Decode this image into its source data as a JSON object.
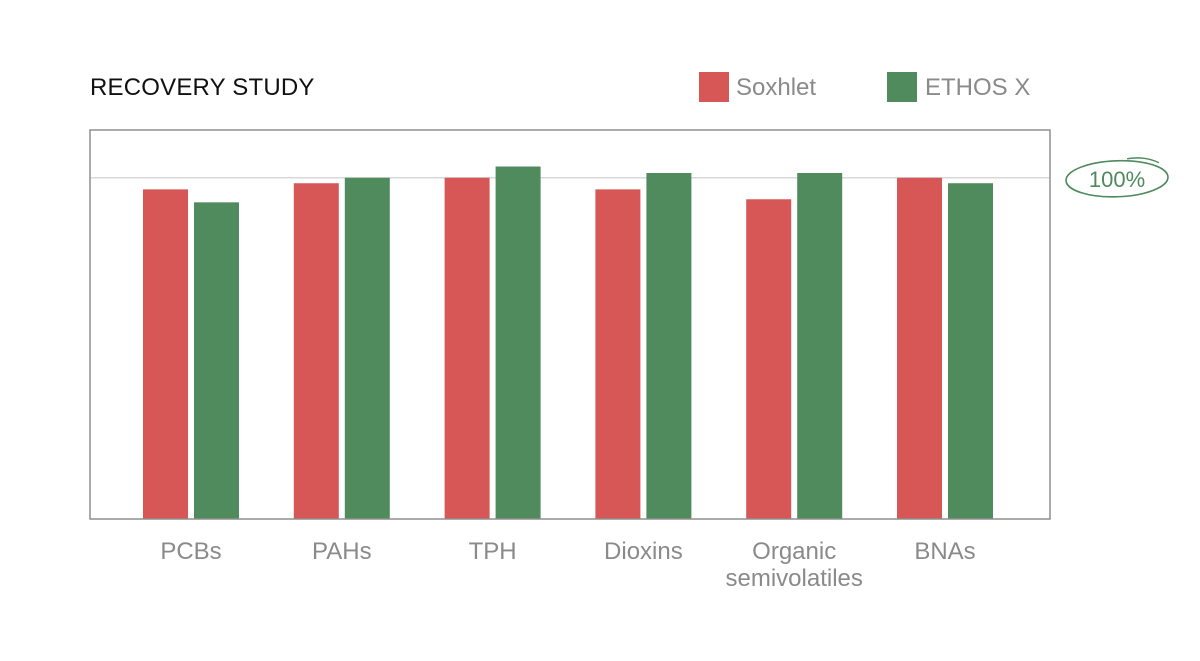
{
  "colors": {
    "soxhlet": "#d75656",
    "ethos_x": "#508b5e",
    "frame": "#8f8f8f",
    "reference_line": "#d8d8d8",
    "reference_label": "#4e8a5c"
  },
  "chart_data": {
    "type": "bar",
    "title": "RECOVERY STUDY",
    "xlabel": "",
    "ylabel": "",
    "categories": [
      [
        "PCBs"
      ],
      [
        "PAHs"
      ],
      [
        "TPH"
      ],
      [
        "Dioxins"
      ],
      [
        "Organic",
        "semivolatiles"
      ],
      [
        "BNAs"
      ]
    ],
    "series": [
      {
        "name": "Soxhlet",
        "values": [
          96.6,
          98.4,
          100.0,
          96.6,
          93.7,
          100.0
        ]
      },
      {
        "name": "ETHOS X",
        "values": [
          92.8,
          100.0,
          103.3,
          101.4,
          101.4,
          98.4
        ]
      }
    ],
    "ylim": [
      0,
      114
    ],
    "reference_line": {
      "value": 100,
      "label": "100%"
    },
    "legend": {
      "position": "top-right"
    },
    "grid": false
  }
}
